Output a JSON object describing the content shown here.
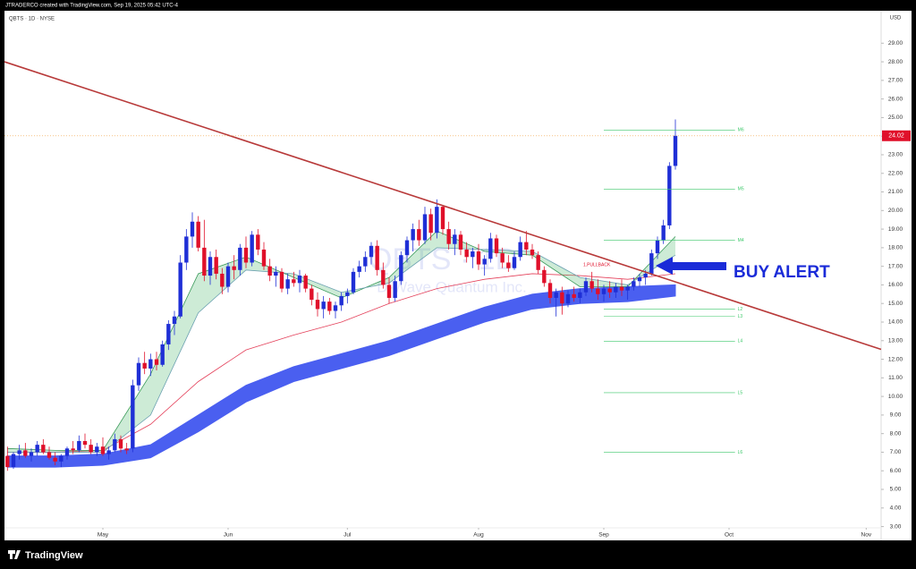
{
  "chart_data": {
    "type": "candlestick",
    "title": "JTRADERCO created with TradingView.com, Sep 19, 2025 05:42 UTC-4",
    "subtitle": "QBTS · 1D · NYSE",
    "watermark": "QBTS · 1D",
    "watermark_sub": "D-Wave Quantum Inc.",
    "currency": "USD",
    "brand": "TradingView",
    "annotation": "BUY ALERT",
    "pullback": "1.PULLBACK",
    "up_color": "#1f2fd6",
    "down_color": "#e0102a",
    "xlim": [
      -0.5,
      146.5
    ],
    "xticks": [
      {
        "value": 16,
        "label": "May"
      },
      {
        "value": 37,
        "label": "Jun"
      },
      {
        "value": 57,
        "label": "Jul"
      },
      {
        "value": 79,
        "label": "Aug"
      },
      {
        "value": 100,
        "label": "Sep"
      },
      {
        "value": 121,
        "label": "Oct"
      },
      {
        "value": 144,
        "label": "Nov"
      }
    ],
    "ylim": [
      2.45,
      30.65
    ],
    "yticks": [
      {
        "value": 3,
        "label": "3.00"
      },
      {
        "value": 4,
        "label": "4.00"
      },
      {
        "value": 5,
        "label": "5.00"
      },
      {
        "value": 6,
        "label": "6.00"
      },
      {
        "value": 7,
        "label": "7.00"
      },
      {
        "value": 8,
        "label": "8.00"
      },
      {
        "value": 9,
        "label": "9.00"
      },
      {
        "value": 10,
        "label": "10.00"
      },
      {
        "value": 11,
        "label": "11.00"
      },
      {
        "value": 12,
        "label": "12.00"
      },
      {
        "value": 13,
        "label": "13.00"
      },
      {
        "value": 14,
        "label": "14.00"
      },
      {
        "value": 15,
        "label": "15.00"
      },
      {
        "value": 16,
        "label": "16.00"
      },
      {
        "value": 17,
        "label": "17.00"
      },
      {
        "value": 18,
        "label": "18.00"
      },
      {
        "value": 19,
        "label": "19.00"
      },
      {
        "value": 20,
        "label": "20.00"
      },
      {
        "value": 21,
        "label": "21.00"
      },
      {
        "value": 22,
        "label": "22.00"
      },
      {
        "value": 23,
        "label": "23.00"
      },
      {
        "value": 24,
        "label": "24.00"
      },
      {
        "value": 25,
        "label": "25.00"
      },
      {
        "value": 26,
        "label": "26.00"
      },
      {
        "value": 27,
        "label": "27.00"
      },
      {
        "value": 28,
        "label": "28.00"
      },
      {
        "value": 29,
        "label": "29.00"
      }
    ],
    "x": [
      0,
      1,
      2,
      3,
      4,
      5,
      6,
      7,
      8,
      9,
      10,
      11,
      12,
      13,
      14,
      15,
      16,
      17,
      18,
      19,
      20,
      21,
      22,
      23,
      24,
      25,
      26,
      27,
      28,
      29,
      30,
      31,
      32,
      33,
      34,
      35,
      36,
      37,
      38,
      39,
      40,
      41,
      42,
      43,
      44,
      45,
      46,
      47,
      48,
      49,
      50,
      51,
      52,
      53,
      54,
      55,
      56,
      57,
      58,
      59,
      60,
      61,
      62,
      63,
      64,
      65,
      66,
      67,
      68,
      69,
      70,
      71,
      72,
      73,
      74,
      75,
      76,
      77,
      78,
      79,
      80,
      81,
      82,
      83,
      84,
      85,
      86,
      87,
      88,
      89,
      90,
      91,
      92,
      93,
      94,
      95,
      96,
      97,
      98,
      99,
      100,
      101,
      102,
      103,
      104,
      105,
      106,
      107,
      108,
      109,
      110,
      111,
      112
    ],
    "open": [
      6.8,
      6.2,
      6.9,
      7.1,
      6.8,
      7.0,
      7.4,
      7.0,
      6.7,
      6.5,
      6.8,
      7.2,
      7.1,
      7.6,
      7.4,
      7.0,
      7.3,
      6.9,
      7.1,
      7.7,
      7.2,
      7.2,
      10.6,
      11.8,
      11.5,
      12.0,
      11.7,
      12.8,
      13.9,
      14.3,
      17.2,
      18.6,
      19.4,
      18.0,
      16.5,
      17.5,
      16.6,
      15.9,
      17.0,
      16.8,
      18.0,
      17.2,
      18.7,
      17.9,
      17.0,
      16.5,
      16.7,
      15.8,
      16.3,
      16.1,
      16.5,
      15.8,
      15.2,
      14.7,
      15.1,
      14.6,
      14.9,
      15.4,
      15.6,
      16.7,
      17.0,
      17.5,
      18.1,
      16.8,
      16.0,
      15.3,
      16.2,
      17.6,
      18.4,
      19.0,
      18.4,
      19.8,
      18.8,
      20.2,
      19.0,
      18.2,
      18.7,
      17.9,
      17.5,
      17.8,
      17.1,
      17.4,
      18.5,
      17.7,
      17.2,
      16.9,
      17.5,
      18.3,
      17.9,
      17.6,
      16.8,
      16.1,
      15.3,
      15.6,
      15.0,
      15.5,
      15.3,
      15.6,
      16.2,
      15.8,
      15.5,
      15.8,
      15.6,
      15.9,
      15.7,
      15.9,
      16.2,
      16.4,
      16.6,
      17.7,
      18.4,
      19.2,
      22.4
    ],
    "high": [
      7.3,
      7.0,
      7.4,
      7.5,
      7.2,
      7.6,
      7.7,
      7.3,
      7.0,
      6.9,
      7.3,
      7.6,
      7.9,
      8.0,
      7.7,
      7.5,
      7.8,
      7.3,
      8.0,
      7.9,
      7.5,
      10.9,
      12.1,
      12.4,
      12.3,
      12.4,
      13.0,
      14.1,
      14.6,
      17.6,
      19.0,
      19.9,
      19.7,
      19.5,
      17.8,
      17.9,
      16.9,
      17.2,
      17.6,
      18.2,
      18.6,
      18.9,
      19.0,
      18.3,
      17.4,
      17.0,
      16.9,
      16.6,
      16.7,
      16.8,
      16.6,
      16.0,
      15.6,
      15.4,
      15.3,
      15.1,
      15.6,
      15.8,
      16.9,
      17.3,
      17.8,
      18.3,
      18.4,
      17.2,
      16.4,
      16.5,
      17.8,
      18.6,
      19.3,
      19.5,
      20.2,
      20.1,
      20.6,
      20.3,
      19.4,
      19.0,
      18.9,
      18.3,
      18.0,
      18.2,
      17.6,
      18.8,
      18.7,
      18.0,
      17.6,
      17.8,
      18.6,
      18.9,
      18.2,
      17.8,
      17.0,
      16.3,
      15.8,
      15.9,
      15.7,
      15.9,
      15.8,
      16.4,
      16.7,
      16.3,
      16.0,
      16.2,
      16.1,
      16.3,
      16.0,
      16.4,
      16.6,
      16.8,
      17.9,
      18.6,
      19.5,
      22.6,
      24.9
    ],
    "low": [
      6.0,
      6.1,
      6.6,
      6.7,
      6.5,
      6.8,
      6.9,
      6.6,
      6.3,
      6.2,
      6.6,
      6.9,
      7.0,
      7.2,
      6.9,
      6.8,
      6.8,
      6.6,
      7.0,
      7.0,
      6.9,
      7.0,
      10.3,
      11.2,
      11.1,
      11.4,
      11.6,
      12.5,
      13.3,
      14.2,
      16.8,
      18.0,
      17.8,
      16.2,
      16.0,
      16.3,
      15.5,
      15.6,
      16.3,
      16.5,
      16.9,
      17.0,
      17.6,
      16.8,
      16.2,
      15.9,
      15.6,
      15.5,
      15.9,
      15.6,
      15.6,
      14.9,
      14.3,
      14.2,
      14.4,
      14.2,
      14.6,
      15.0,
      15.5,
      16.4,
      16.7,
      17.1,
      16.5,
      15.8,
      15.0,
      15.1,
      16.0,
      17.2,
      17.8,
      18.1,
      18.2,
      18.4,
      18.5,
      18.7,
      17.9,
      17.6,
      17.6,
      17.2,
      16.9,
      16.8,
      16.5,
      17.2,
      17.5,
      16.9,
      16.7,
      16.8,
      17.3,
      17.6,
      17.4,
      16.6,
      15.9,
      15.0,
      14.3,
      14.4,
      14.8,
      15.1,
      15.0,
      15.4,
      15.6,
      15.2,
      15.1,
      15.3,
      15.3,
      15.4,
      15.2,
      15.7,
      15.9,
      16.0,
      16.5,
      17.4,
      18.2,
      19.0,
      22.2
    ],
    "close": [
      6.2,
      6.9,
      7.1,
      6.8,
      7.0,
      7.4,
      7.0,
      6.7,
      6.5,
      6.8,
      7.2,
      7.1,
      7.6,
      7.4,
      7.0,
      7.3,
      6.9,
      7.1,
      7.7,
      7.2,
      7.1,
      10.6,
      11.8,
      11.5,
      12.0,
      11.7,
      12.8,
      13.9,
      14.3,
      17.2,
      18.6,
      19.4,
      18.0,
      16.5,
      17.5,
      16.6,
      15.9,
      17.0,
      16.8,
      18.0,
      17.2,
      18.7,
      17.9,
      17.0,
      16.5,
      16.7,
      15.8,
      16.3,
      16.1,
      16.5,
      15.8,
      15.2,
      14.7,
      15.1,
      14.6,
      14.9,
      15.4,
      15.6,
      16.7,
      17.0,
      17.5,
      18.1,
      16.8,
      16.0,
      15.3,
      16.2,
      17.6,
      18.4,
      19.0,
      18.4,
      19.8,
      18.8,
      20.2,
      19.0,
      18.2,
      18.7,
      17.9,
      17.5,
      17.8,
      17.1,
      17.4,
      18.5,
      17.7,
      17.2,
      16.9,
      17.5,
      18.3,
      17.9,
      17.6,
      16.8,
      16.1,
      15.3,
      15.6,
      15.0,
      15.5,
      15.3,
      15.6,
      16.2,
      15.8,
      15.5,
      15.8,
      15.6,
      15.9,
      15.7,
      15.9,
      16.2,
      16.4,
      16.6,
      17.7,
      18.4,
      19.2,
      22.4,
      24.02
    ],
    "price_line_color": "#e0102a",
    "overlays": {
      "x": [
        0,
        8,
        16,
        24,
        32,
        40,
        48,
        56,
        64,
        72,
        80,
        88,
        96,
        104,
        112
      ],
      "ribbon": {
        "color": "#4a5ff0",
        "upper": [
          6.8,
          6.8,
          6.9,
          7.4,
          9.0,
          10.6,
          11.6,
          12.3,
          13.0,
          13.9,
          14.8,
          15.5,
          15.8,
          15.9,
          16.0
        ],
        "lower": [
          6.2,
          6.2,
          6.3,
          6.7,
          8.1,
          9.7,
          10.8,
          11.5,
          12.2,
          13.1,
          14.0,
          14.7,
          15.0,
          15.1,
          15.4
        ]
      },
      "ma": {
        "color": "#e4405a",
        "values": [
          7.0,
          7.0,
          7.1,
          8.5,
          10.8,
          12.5,
          13.3,
          14.0,
          15.0,
          15.8,
          16.3,
          16.6,
          16.5,
          16.3,
          16.6
        ]
      },
      "cloud": {
        "color": "#3a9a5a",
        "fast": [
          7.2,
          7.1,
          7.1,
          11.2,
          16.6,
          17.5,
          16.4,
          15.3,
          16.4,
          18.9,
          17.8,
          17.6,
          15.9,
          15.9,
          18.6
        ],
        "slow": [
          7.0,
          7.0,
          7.0,
          9.0,
          14.5,
          16.8,
          16.6,
          15.6,
          16.1,
          18.0,
          17.9,
          17.8,
          16.4,
          16.0,
          17.6
        ]
      }
    },
    "trendline": {
      "color": "#b83a3a",
      "x": [
        -0.5,
        146.5
      ],
      "y": [
        28.0,
        12.53
      ]
    },
    "levels_color": "#3cc86a",
    "levels_x": [
      100,
      122
    ],
    "levels": [
      {
        "name": "M6",
        "value": 24.33
      },
      {
        "name": "M5",
        "value": 21.15
      },
      {
        "name": "M4",
        "value": 18.4
      },
      {
        "name": "L2",
        "value": 14.7
      },
      {
        "name": "L3",
        "value": 14.3
      },
      {
        "name": "L4",
        "value": 12.97
      },
      {
        "name": "L5",
        "value": 10.2
      },
      {
        "name": "L6",
        "value": 7.0
      }
    ]
  }
}
